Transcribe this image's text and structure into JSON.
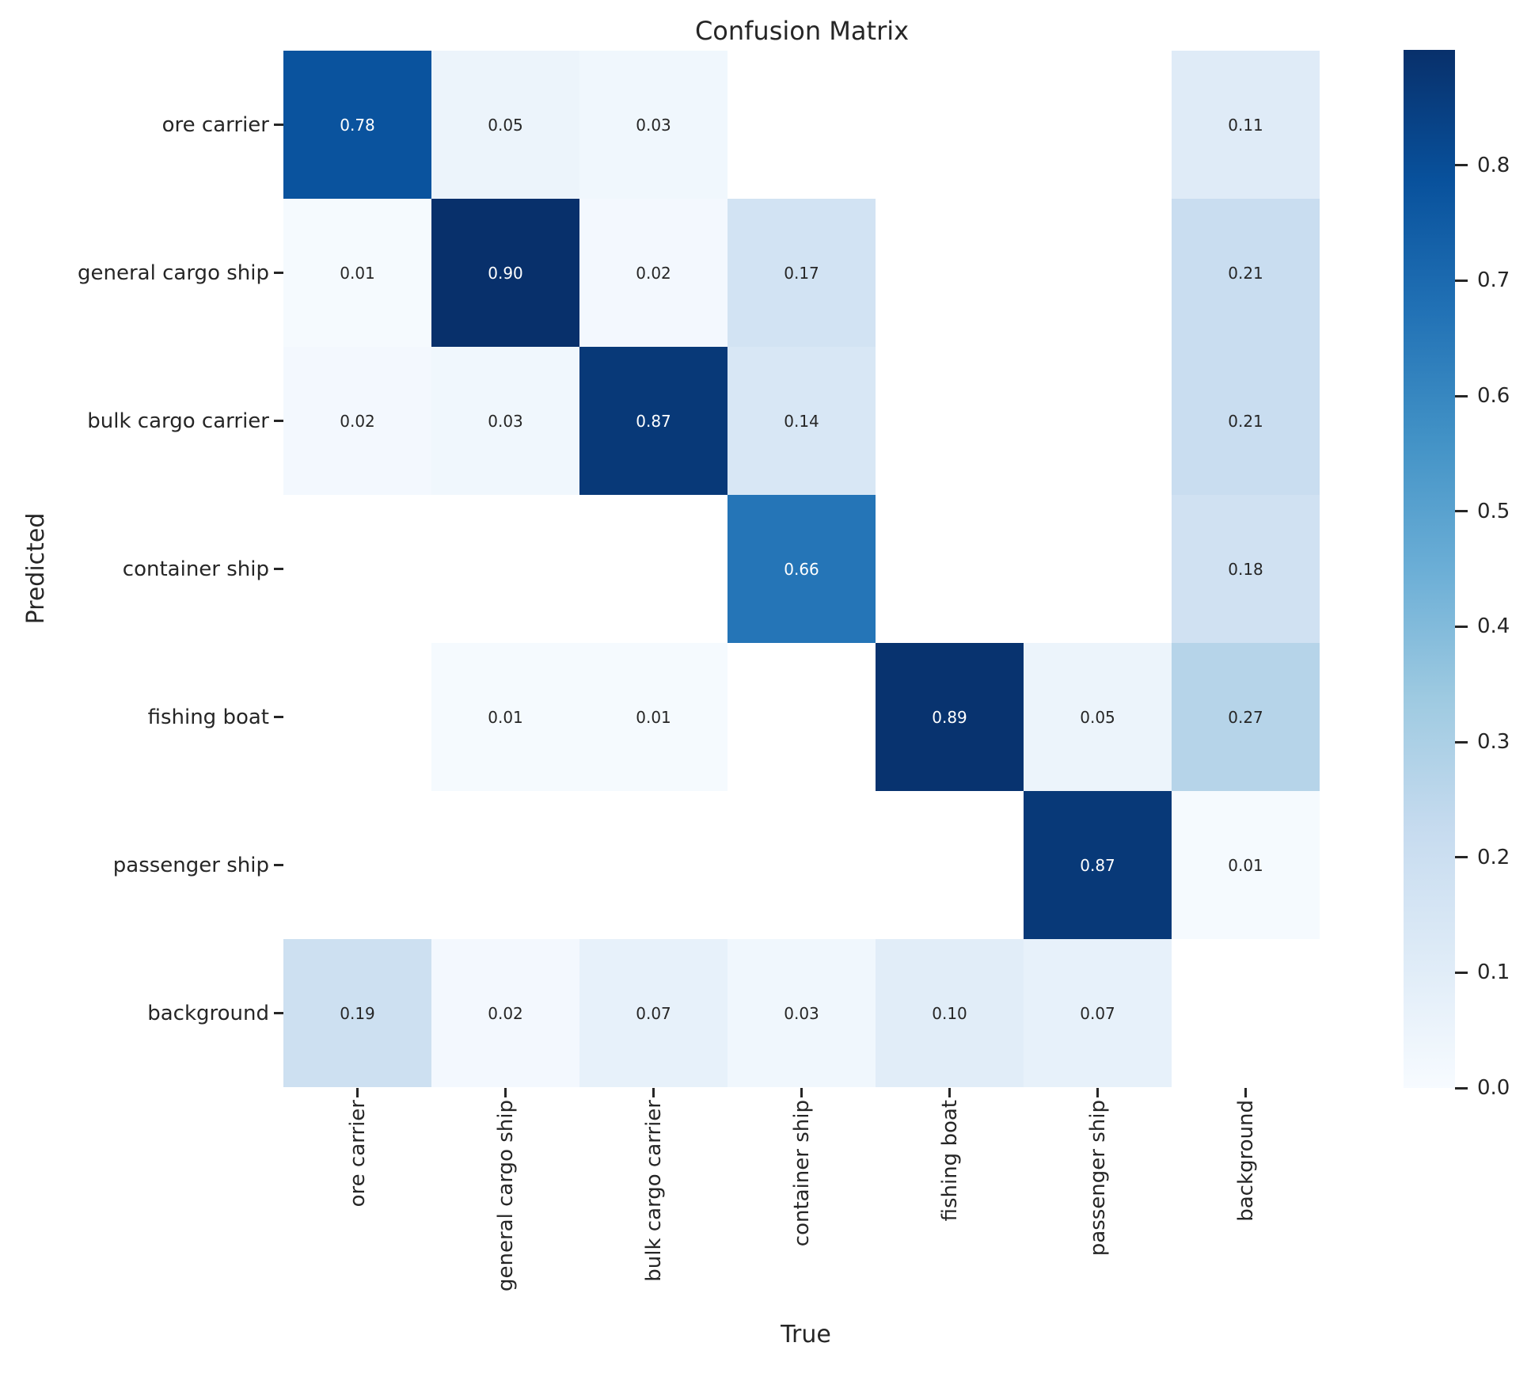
{
  "chart_data": {
    "type": "heatmap",
    "title": "Confusion Matrix",
    "xlabel": "True",
    "ylabel": "Predicted",
    "x_labels": [
      "ore carrier",
      "general cargo ship",
      "bulk cargo carrier",
      "container ship",
      "fishing boat",
      "passenger ship",
      "background"
    ],
    "y_labels": [
      "ore carrier",
      "general cargo ship",
      "bulk cargo carrier",
      "container ship",
      "fishing boat",
      "passenger ship",
      "background"
    ],
    "values": [
      [
        0.78,
        0.05,
        0.03,
        null,
        null,
        null,
        0.11
      ],
      [
        0.01,
        0.9,
        0.02,
        0.17,
        null,
        null,
        0.21
      ],
      [
        0.02,
        0.03,
        0.87,
        0.14,
        null,
        null,
        0.21
      ],
      [
        null,
        null,
        null,
        0.66,
        null,
        null,
        0.18
      ],
      [
        null,
        0.01,
        0.01,
        null,
        0.89,
        0.05,
        0.27
      ],
      [
        null,
        null,
        null,
        null,
        null,
        0.87,
        0.01
      ],
      [
        0.19,
        0.02,
        0.07,
        0.03,
        0.1,
        0.07,
        null
      ]
    ],
    "annotation_decimals": 2,
    "vmin": 0.0,
    "vmax": 0.9,
    "colormap": "Blues",
    "colormap_anchors": [
      "#f7fbff",
      "#deebf7",
      "#c6dbef",
      "#9ecae1",
      "#6baed6",
      "#4292c6",
      "#2171b5",
      "#08519c",
      "#08306b"
    ],
    "empty_cell_color": "#ffffff",
    "annotation_color_dark": "#262626",
    "annotation_color_light": "#ffffff",
    "colorbar_ticks": [
      "0.0",
      "0.1",
      "0.2",
      "0.3",
      "0.4",
      "0.5",
      "0.6",
      "0.7",
      "0.8"
    ],
    "legend_position": "right",
    "grid": false
  }
}
